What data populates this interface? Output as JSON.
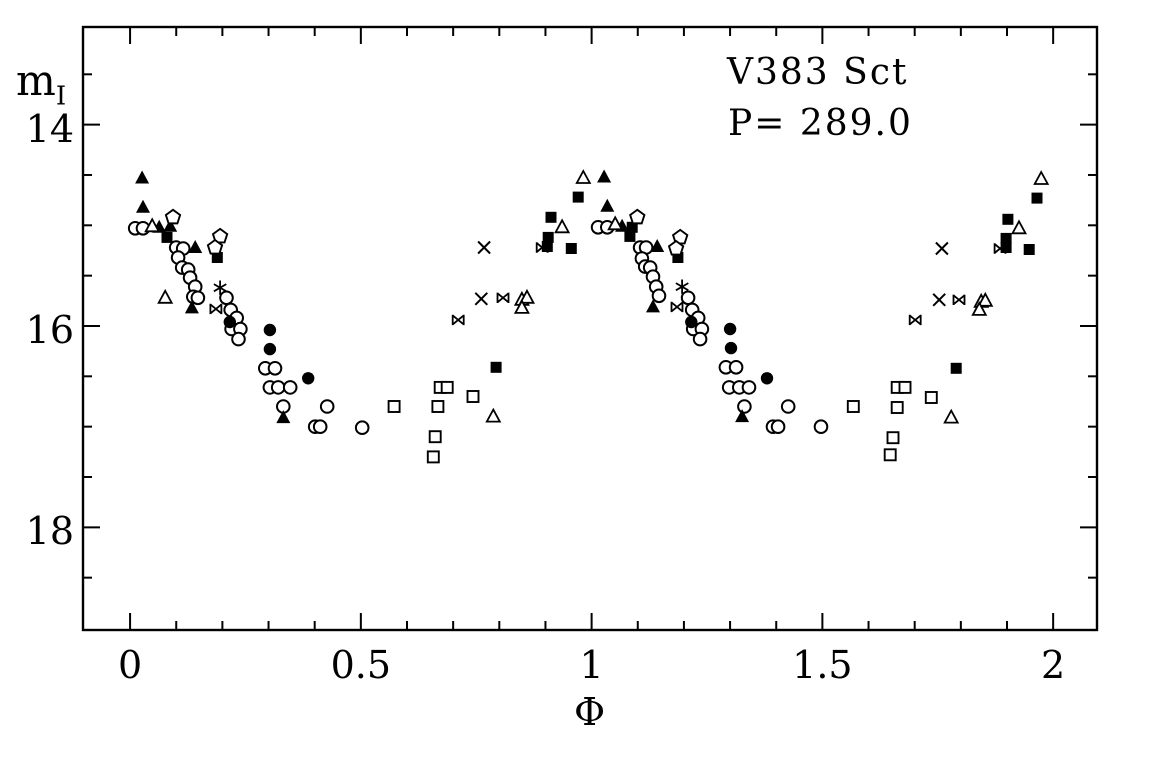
{
  "figure": {
    "title": "V383 Sct",
    "subtitle": "P= 289.0",
    "xlabel": "Φ",
    "ylabel_base": "m",
    "ylabel_sub": "I"
  },
  "colors": {
    "foreground": "#000000",
    "background": "#ffffff"
  },
  "chart_data": {
    "type": "scatter",
    "title": "V383 Sct",
    "subtitle": "P= 289.0",
    "xlabel": "Φ",
    "ylabel": "m_I",
    "grid": false,
    "legend": "none",
    "x_axis": {
      "min": -0.102,
      "max": 2.095,
      "major_ticks": [
        0,
        0.5,
        1,
        1.5,
        2
      ],
      "major_tick_labels": [
        "0",
        "0.5",
        "1",
        "1.5",
        "2"
      ],
      "minor_tick_step": 0.1
    },
    "y_axis": {
      "min": 13.03,
      "max": 19.02,
      "major_ticks": [
        14,
        16,
        18
      ],
      "major_tick_labels": [
        "14",
        "16",
        "18"
      ],
      "minor_tick_step": 0.5,
      "inverted": true
    },
    "series": [
      {
        "name": "open-circle",
        "marker": "open_circle",
        "points": [
          [
            0.011,
            15.03
          ],
          [
            0.028,
            15.03
          ],
          [
            0.1,
            15.22
          ],
          [
            0.115,
            15.23
          ],
          [
            0.104,
            15.32
          ],
          [
            0.113,
            15.42
          ],
          [
            0.126,
            15.44
          ],
          [
            0.13,
            15.52
          ],
          [
            0.141,
            15.61
          ],
          [
            0.137,
            15.71
          ],
          [
            0.147,
            15.72
          ],
          [
            0.209,
            15.72
          ],
          [
            0.218,
            15.84
          ],
          [
            0.231,
            15.92
          ],
          [
            0.22,
            16.03
          ],
          [
            0.239,
            16.03
          ],
          [
            0.235,
            16.13
          ],
          [
            0.293,
            16.42
          ],
          [
            0.314,
            16.42
          ],
          [
            0.303,
            16.61
          ],
          [
            0.321,
            16.61
          ],
          [
            0.347,
            16.61
          ],
          [
            0.332,
            16.8
          ],
          [
            0.427,
            16.8
          ],
          [
            0.401,
            17.0
          ],
          [
            0.412,
            17.0
          ],
          [
            0.503,
            17.01
          ],
          [
            1.014,
            15.02
          ],
          [
            1.034,
            15.02
          ],
          [
            1.105,
            15.22
          ],
          [
            1.118,
            15.22
          ],
          [
            1.109,
            15.33
          ],
          [
            1.116,
            15.41
          ],
          [
            1.127,
            15.42
          ],
          [
            1.133,
            15.51
          ],
          [
            1.14,
            15.61
          ],
          [
            1.146,
            15.7
          ],
          [
            1.209,
            15.72
          ],
          [
            1.218,
            15.84
          ],
          [
            1.231,
            15.92
          ],
          [
            1.22,
            16.03
          ],
          [
            1.239,
            16.03
          ],
          [
            1.235,
            16.13
          ],
          [
            1.291,
            16.41
          ],
          [
            1.313,
            16.41
          ],
          [
            1.298,
            16.61
          ],
          [
            1.32,
            16.61
          ],
          [
            1.341,
            16.61
          ],
          [
            1.331,
            16.8
          ],
          [
            1.426,
            16.8
          ],
          [
            1.393,
            17.0
          ],
          [
            1.404,
            17.0
          ],
          [
            1.497,
            17.0
          ]
        ]
      },
      {
        "name": "filled-circle",
        "marker": "filled_circle",
        "points": [
          [
            0.216,
            15.96
          ],
          [
            0.303,
            16.04
          ],
          [
            0.303,
            16.23
          ],
          [
            0.386,
            16.52
          ],
          [
            1.216,
            15.96
          ],
          [
            1.3,
            16.03
          ],
          [
            1.302,
            16.22
          ],
          [
            1.38,
            16.52
          ]
        ]
      },
      {
        "name": "filled-triangle",
        "marker": "filled_triangle",
        "points": [
          [
            0.026,
            14.53
          ],
          [
            0.028,
            14.82
          ],
          [
            0.063,
            15.02
          ],
          [
            0.087,
            15.01
          ],
          [
            0.141,
            15.22
          ],
          [
            0.134,
            15.82
          ],
          [
            0.332,
            16.91
          ],
          [
            1.027,
            14.52
          ],
          [
            1.034,
            14.81
          ],
          [
            1.066,
            15.01
          ],
          [
            1.142,
            15.21
          ],
          [
            1.133,
            15.81
          ],
          [
            1.326,
            16.9
          ]
        ]
      },
      {
        "name": "open-triangle",
        "marker": "open_triangle",
        "points": [
          [
            0.048,
            15.01
          ],
          [
            0.076,
            15.72
          ],
          [
            0.787,
            16.9
          ],
          [
            0.849,
            15.74
          ],
          [
            0.86,
            15.72
          ],
          [
            0.849,
            15.82
          ],
          [
            0.936,
            15.02
          ],
          [
            0.982,
            14.53
          ],
          [
            1.051,
            14.99
          ],
          [
            1.779,
            16.91
          ],
          [
            1.844,
            15.76
          ],
          [
            1.853,
            15.75
          ],
          [
            1.84,
            15.84
          ],
          [
            1.926,
            15.03
          ],
          [
            1.974,
            14.54
          ]
        ]
      },
      {
        "name": "filled-square",
        "marker": "filled_square",
        "points": [
          [
            0.08,
            15.12
          ],
          [
            0.189,
            15.32
          ],
          [
            0.793,
            16.41
          ],
          [
            0.906,
            15.12
          ],
          [
            0.904,
            15.21
          ],
          [
            0.912,
            14.92
          ],
          [
            0.971,
            14.72
          ],
          [
            0.956,
            15.23
          ],
          [
            1.088,
            15.02
          ],
          [
            1.083,
            15.11
          ],
          [
            1.187,
            15.32
          ],
          [
            1.79,
            16.42
          ],
          [
            1.898,
            15.22
          ],
          [
            1.898,
            15.13
          ],
          [
            1.902,
            14.94
          ],
          [
            1.948,
            15.24
          ],
          [
            1.965,
            14.73
          ]
        ]
      },
      {
        "name": "open-square",
        "marker": "open_square",
        "points": [
          [
            0.572,
            16.8
          ],
          [
            0.657,
            17.3
          ],
          [
            0.661,
            17.1
          ],
          [
            0.667,
            16.8
          ],
          [
            0.672,
            16.61
          ],
          [
            0.687,
            16.61
          ],
          [
            0.743,
            16.7
          ],
          [
            1.567,
            16.8
          ],
          [
            1.662,
            16.61
          ],
          [
            1.679,
            16.61
          ],
          [
            1.662,
            16.81
          ],
          [
            1.653,
            17.11
          ],
          [
            1.647,
            17.28
          ],
          [
            1.736,
            16.71
          ]
        ]
      },
      {
        "name": "cross",
        "marker": "cross",
        "points": [
          [
            0.761,
            15.73
          ],
          [
            0.767,
            15.22
          ],
          [
            1.753,
            15.74
          ],
          [
            1.759,
            15.23
          ]
        ]
      },
      {
        "name": "asterisk",
        "marker": "asterisk",
        "points": [
          [
            0.195,
            15.62
          ],
          [
            1.196,
            15.61
          ]
        ]
      },
      {
        "name": "open-pentagon",
        "marker": "open_pentagon",
        "points": [
          [
            0.093,
            14.92
          ],
          [
            0.195,
            15.11
          ],
          [
            0.184,
            15.22
          ],
          [
            1.099,
            14.92
          ],
          [
            1.192,
            15.12
          ],
          [
            1.183,
            15.23
          ]
        ]
      },
      {
        "name": "four-point-star",
        "marker": "four_point_star",
        "points": [
          [
            0.186,
            15.83
          ],
          [
            0.711,
            15.94
          ],
          [
            0.808,
            15.72
          ],
          [
            0.893,
            15.22
          ],
          [
            1.185,
            15.81
          ],
          [
            1.701,
            15.94
          ],
          [
            1.796,
            15.74
          ],
          [
            1.885,
            15.23
          ]
        ]
      }
    ]
  }
}
